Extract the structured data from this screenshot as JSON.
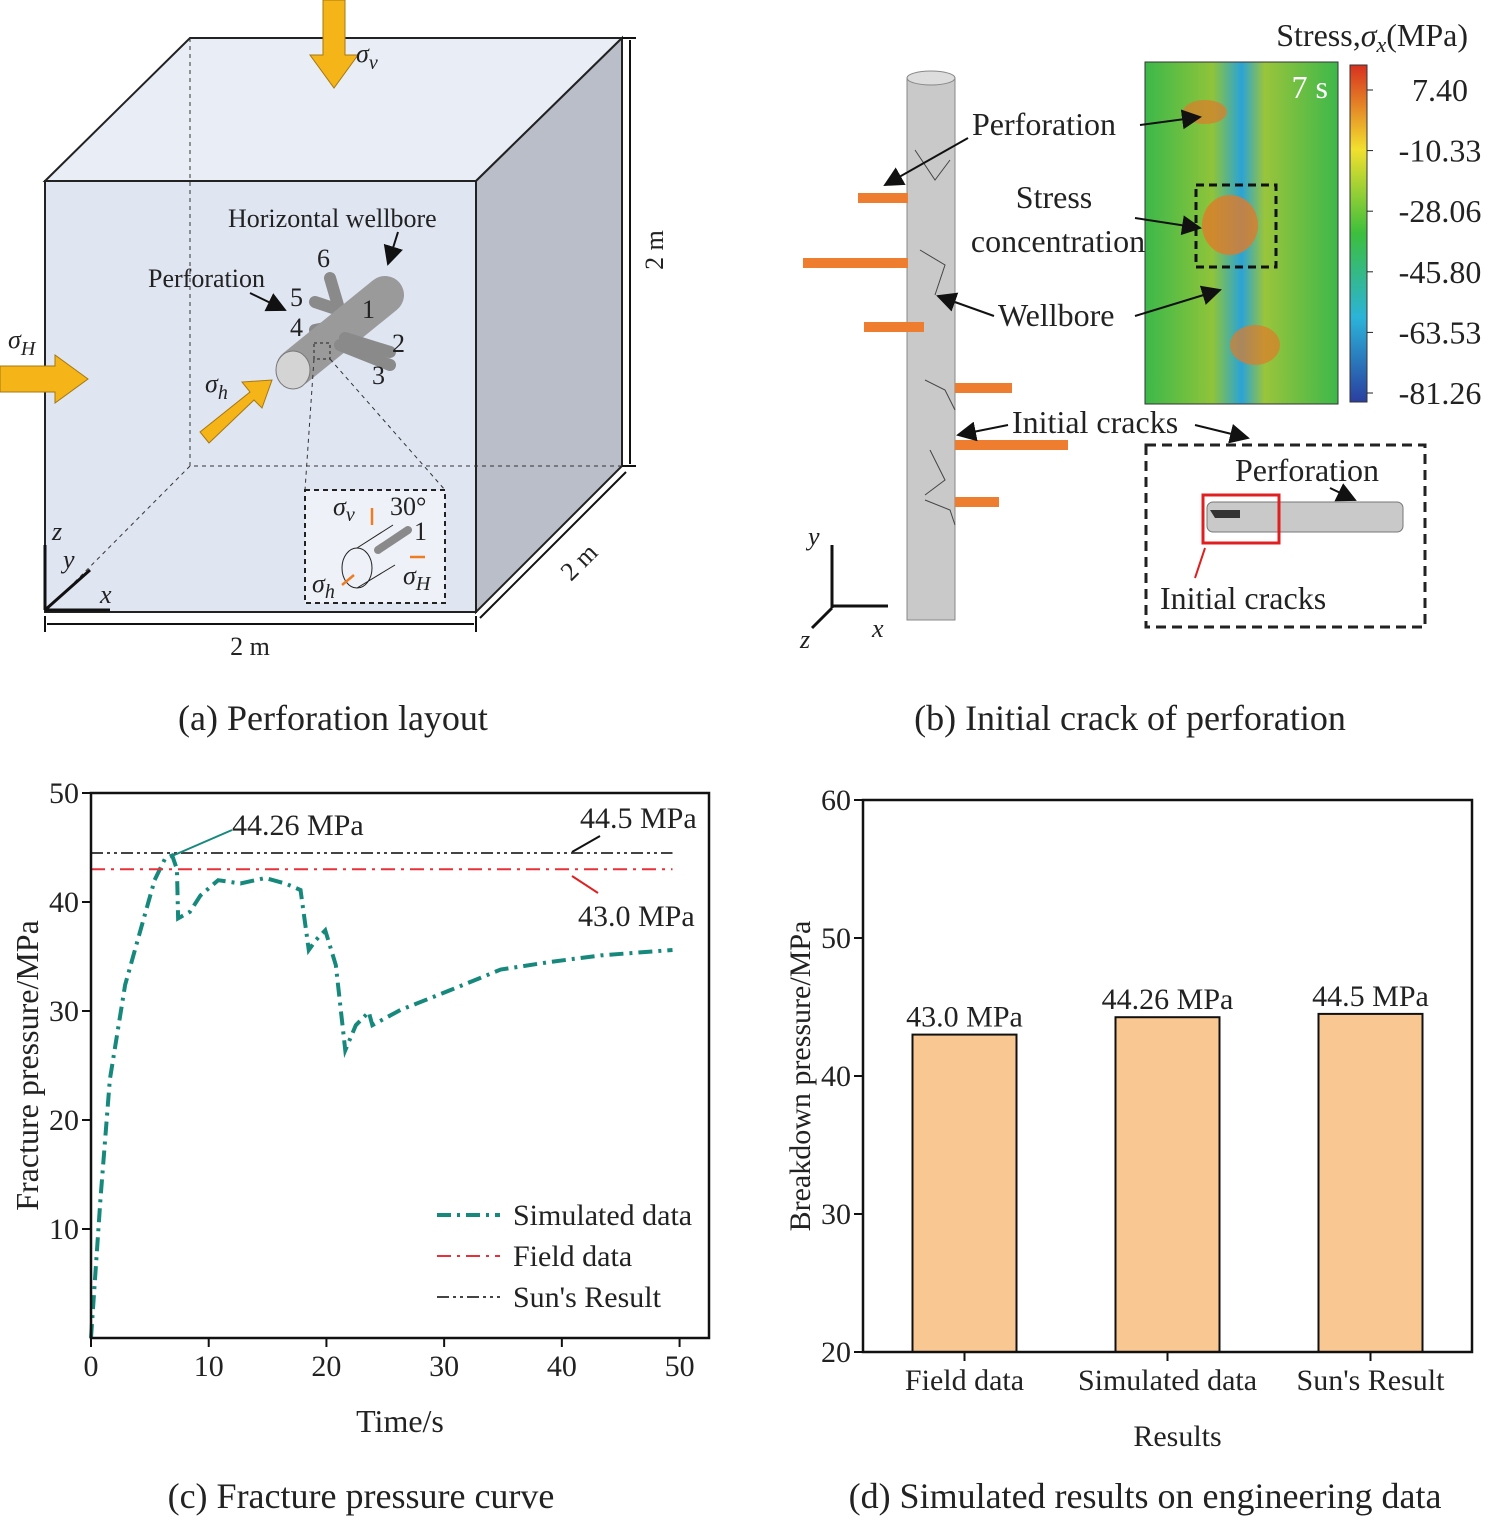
{
  "panel_a": {
    "caption": "(a) Perforation layout",
    "sigma_v": {
      "sym": "σ",
      "sub": "v"
    },
    "sigma_H": {
      "sym": "σ",
      "sub": "H"
    },
    "sigma_h": {
      "sym": "σ",
      "sub": "h"
    },
    "wellbore_label": "Horizontal wellbore",
    "perforation_label": "Perforation",
    "perforation_numbers": [
      "1",
      "2",
      "3",
      "4",
      "5",
      "6"
    ],
    "dimensions": [
      "2 m",
      "2 m",
      "2 m"
    ],
    "axes": [
      "x",
      "y",
      "z"
    ],
    "inset": {
      "sigma_v": {
        "sym": "σ",
        "sub": "v"
      },
      "sigma_h": {
        "sym": "σ",
        "sub": "h"
      },
      "sigma_H": {
        "sym": "σ",
        "sub": "H"
      },
      "angle": "30°",
      "number": "1"
    }
  },
  "panel_b": {
    "caption": "(b) Initial crack of perforation",
    "labels": {
      "perforation": "Perforation",
      "stress_concentration": [
        "Stress",
        "concentration"
      ],
      "wellbore": "Wellbore",
      "initial_cracks": "Initial cracks"
    },
    "time": "7 s",
    "colorbar": {
      "title_prefix": "Stress,",
      "sym": "σ",
      "sub": "x",
      "title_unit": "(MPa)",
      "ticks": [
        {
          "value": 7.4,
          "label": "7.40"
        },
        -10.33,
        -28.06,
        {
          "value": -45.8,
          "label": "-45.80"
        },
        -63.53,
        -81.26
      ]
    },
    "inset": {
      "perforation": "Perforation",
      "initial_cracks": "Initial cracks"
    },
    "axes": [
      "x",
      "y",
      "z"
    ]
  },
  "chart_data": [
    {
      "type": "line",
      "caption": "(c) Fracture pressure curve",
      "xlabel": "Time/s",
      "ylabel": "Fracture pressure/MPa",
      "xlim": [
        0,
        52.5
      ],
      "ylim": [
        0,
        50
      ],
      "xticks": [
        0,
        10,
        20,
        30,
        40,
        50
      ],
      "yticks": [
        10,
        20,
        30,
        40,
        50
      ],
      "legend": "lower right",
      "series": [
        {
          "name": "Simulated data",
          "color": "#16897c",
          "style": "dash-dot",
          "x": [
            0,
            0.8,
            1.6,
            2.9,
            4.2,
            5.4,
            6.3,
            6.9,
            7.3,
            7.4,
            8.4,
            9.3,
            10.8,
            12.7,
            14.8,
            16.5,
            17.8,
            18.5,
            19.1,
            19.9,
            20.8,
            21.6,
            22.5,
            23.6,
            23.9,
            26.3,
            30.5,
            34.8,
            39,
            43.3,
            49.4
          ],
          "values": [
            0,
            12.7,
            23.7,
            32.4,
            37.4,
            42,
            44,
            44.26,
            43,
            38.5,
            39.1,
            40.6,
            42,
            41.7,
            42.2,
            41.7,
            41.1,
            35.6,
            36.5,
            37.4,
            34.2,
            26.4,
            28.7,
            29.9,
            28.7,
            30.1,
            31.9,
            33.8,
            34.5,
            35.1,
            35.6
          ]
        },
        {
          "name": "Field data",
          "color": "#e8303a",
          "style": "dash-dot",
          "x": [
            0,
            49.4
          ],
          "values": [
            43.0,
            43.0
          ]
        },
        {
          "name": "Sun's Result",
          "color": "#444444",
          "style": "dash-dot-dot",
          "x": [
            0,
            49.4
          ],
          "values": [
            44.5,
            44.5
          ]
        }
      ],
      "annotations": [
        "44.26 MPa",
        "44.5 MPa",
        "43.0 MPa"
      ]
    },
    {
      "type": "bar",
      "caption": "(d) Simulated results on engineering data",
      "xlabel": "Results",
      "ylabel": "Breakdown pressure/MPa",
      "categories": [
        "Field data",
        "Simulated data",
        "Sun's Result"
      ],
      "values": [
        43.0,
        44.26,
        44.5
      ],
      "value_labels": [
        "43.0 MPa",
        "44.26 MPa",
        "44.5 MPa"
      ],
      "color": "#f9c892",
      "ylim": [
        20,
        60
      ],
      "yticks": [
        20,
        30,
        40,
        50,
        60
      ]
    }
  ]
}
